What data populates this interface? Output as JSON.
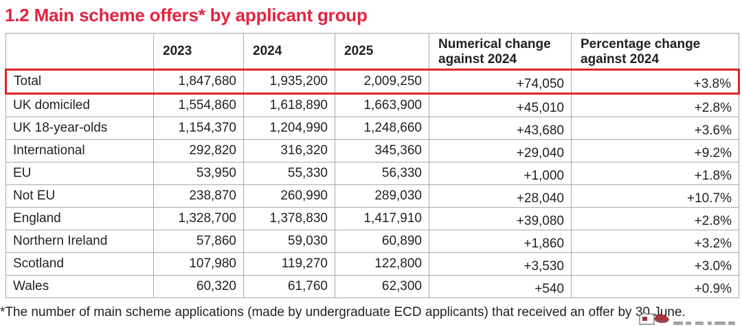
{
  "title": "1.2 Main scheme offers* by applicant group",
  "colors": {
    "accent_red": "#e2233f",
    "highlight_box_red": "#e02424",
    "grid_border": "#a8a8a8",
    "text": "#1f2023"
  },
  "table": {
    "columns": [
      "",
      "2023",
      "2024",
      "2025",
      "Numerical change against 2024",
      "Percentage change against 2024"
    ],
    "rows": [
      {
        "label": "Total",
        "y2023": "1,847,680",
        "y2024": "1,935,200",
        "y2025": "2,009,250",
        "num_change": "+74,050",
        "pct_change": "+3.8%",
        "highlighted": true
      },
      {
        "label": "UK domiciled",
        "y2023": "1,554,860",
        "y2024": "1,618,890",
        "y2025": "1,663,900",
        "num_change": "+45,010",
        "pct_change": "+2.8%",
        "highlighted": false
      },
      {
        "label": "UK 18-year-olds",
        "y2023": "1,154,370",
        "y2024": "1,204,990",
        "y2025": "1,248,660",
        "num_change": "+43,680",
        "pct_change": "+3.6%",
        "highlighted": false
      },
      {
        "label": "International",
        "y2023": "292,820",
        "y2024": "316,320",
        "y2025": "345,360",
        "num_change": "+29,040",
        "pct_change": "+9.2%",
        "highlighted": false
      },
      {
        "label": "EU",
        "y2023": "53,950",
        "y2024": "55,330",
        "y2025": "56,330",
        "num_change": "+1,000",
        "pct_change": "+1.8%",
        "highlighted": false
      },
      {
        "label": "Not EU",
        "y2023": "238,870",
        "y2024": "260,990",
        "y2025": "289,030",
        "num_change": "+28,040",
        "pct_change": "+10.7%",
        "highlighted": false
      },
      {
        "label": "England",
        "y2023": "1,328,700",
        "y2024": "1,378,830",
        "y2025": "1,417,910",
        "num_change": "+39,080",
        "pct_change": "+2.8%",
        "highlighted": false
      },
      {
        "label": "Northern Ireland",
        "y2023": "57,860",
        "y2024": "59,030",
        "y2025": "60,890",
        "num_change": "+1,860",
        "pct_change": "+3.2%",
        "highlighted": false
      },
      {
        "label": "Scotland",
        "y2023": "107,980",
        "y2024": "119,270",
        "y2025": "122,800",
        "num_change": "+3,530",
        "pct_change": "+3.0%",
        "highlighted": false
      },
      {
        "label": "Wales",
        "y2023": "60,320",
        "y2024": "61,760",
        "y2025": "62,300",
        "num_change": "+540",
        "pct_change": "+0.9%",
        "highlighted": false
      }
    ]
  },
  "footnote": "*The number of main scheme applications (made by undergraduate ECD applicants) that received an offer by 30 June."
}
